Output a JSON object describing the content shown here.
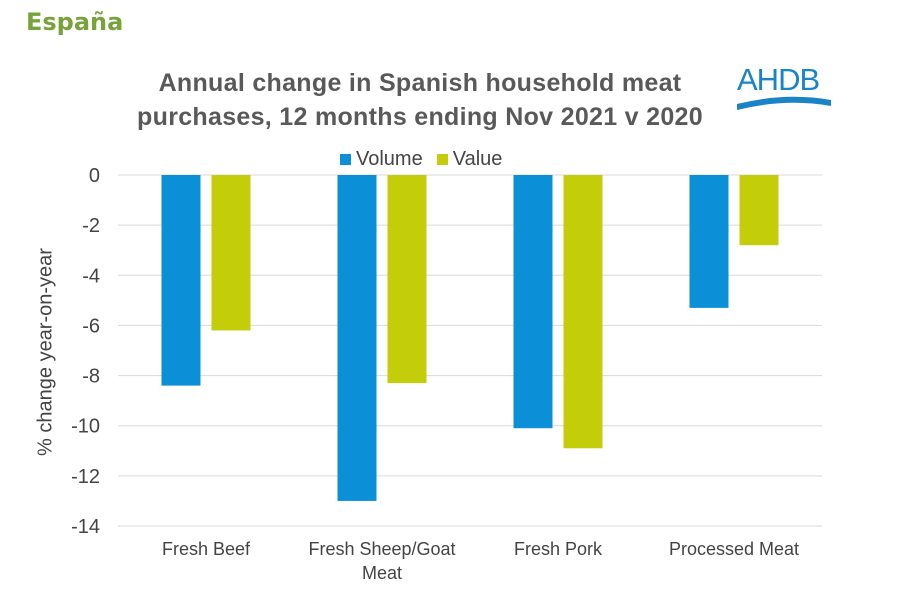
{
  "page": {
    "heading": "España",
    "logo_text": "AHDB"
  },
  "chart_data": {
    "type": "bar",
    "title": "Annual change in Spanish household meat purchases, 12 months ending Nov 2021 v 2020",
    "title_lines": [
      "Annual change in Spanish household meat",
      "purchases, 12 months ending Nov 2021 v 2020"
    ],
    "categories": [
      "Fresh Beef",
      "Fresh Sheep/Goat Meat",
      "Fresh Pork",
      "Processed Meat"
    ],
    "category_lines": [
      [
        "Fresh Beef"
      ],
      [
        "Fresh Sheep/Goat",
        "Meat"
      ],
      [
        "Fresh Pork"
      ],
      [
        "Processed Meat"
      ]
    ],
    "series": [
      {
        "name": "Volume",
        "color": "#0b8fd6",
        "values": [
          -8.4,
          -13.0,
          -10.1,
          -5.3
        ]
      },
      {
        "name": "Value",
        "color": "#c3cd0a",
        "values": [
          -6.2,
          -8.3,
          -10.9,
          -2.8
        ]
      }
    ],
    "xlabel": "",
    "ylabel": "% change year-on-year",
    "ylim": [
      -14,
      0
    ],
    "yticks": [
      0,
      -2,
      -4,
      -6,
      -8,
      -10,
      -12,
      -14
    ],
    "grid": true,
    "legend_position": "top"
  },
  "colors": {
    "heading": "#77a33a",
    "grid": "#d9d9d9",
    "text": "#444444",
    "logo": "#1a84c7"
  }
}
